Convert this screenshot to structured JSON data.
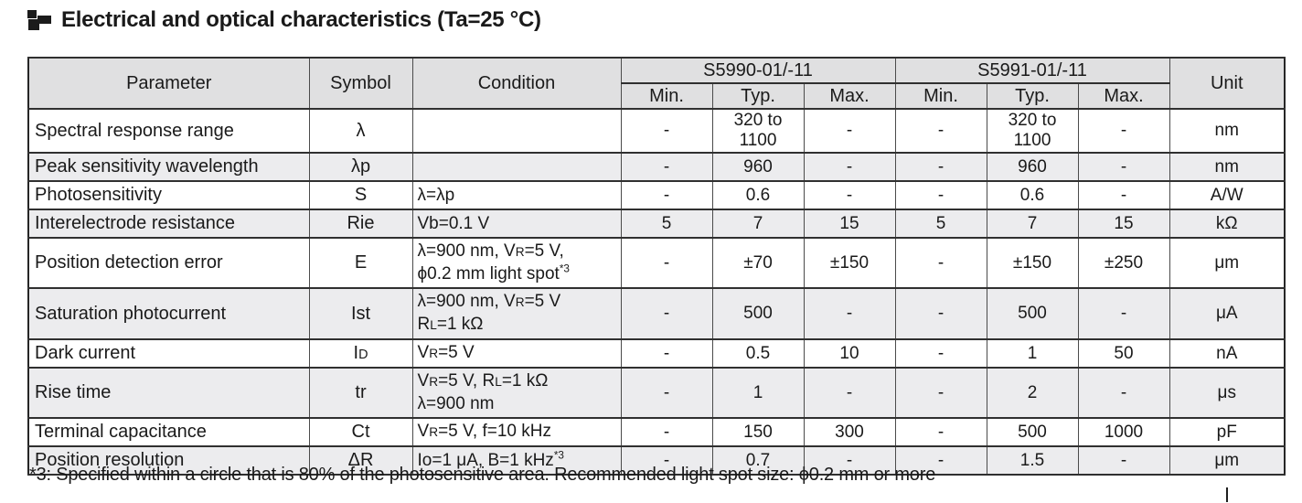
{
  "title": "Electrical and optical characteristics (Ta=25 °C)",
  "icons": {
    "section_bullet": "checker-squares-bullet"
  },
  "colors": {
    "text": "#1a1a1a",
    "header_bg": "#e0e0e1",
    "row_alt_bg": "#ececee",
    "border_dark": "#2a2a2a",
    "border_mid": "#4b4b4b"
  },
  "table": {
    "headers": {
      "parameter": "Parameter",
      "symbol": "Symbol",
      "condition": "Condition",
      "group1": "S5990-01/-11",
      "group2": "S5991-01/-11",
      "min": "Min.",
      "typ": "Typ.",
      "max": "Max.",
      "unit": "Unit"
    },
    "rows": [
      {
        "parameter": "Spectral response range",
        "symbol": "λ",
        "condition": "",
        "s5990": [
          "-",
          "320 to 1100",
          "-"
        ],
        "s5991": [
          "-",
          "320 to 1100",
          "-"
        ],
        "unit": "nm"
      },
      {
        "parameter": "Peak sensitivity wavelength",
        "symbol": "λp",
        "condition": "",
        "s5990": [
          "-",
          "960",
          "-"
        ],
        "s5991": [
          "-",
          "960",
          "-"
        ],
        "unit": "nm"
      },
      {
        "parameter": "Photosensitivity",
        "symbol": "S",
        "condition": "λ=λp",
        "s5990": [
          "-",
          "0.6",
          "-"
        ],
        "s5991": [
          "-",
          "0.6",
          "-"
        ],
        "unit": "A/W"
      },
      {
        "parameter": "Interelectrode resistance",
        "symbol": "Rie",
        "condition": "Vb=0.1 V",
        "s5990": [
          "5",
          "7",
          "15"
        ],
        "s5991": [
          "5",
          "7",
          "15"
        ],
        "unit": "kΩ"
      },
      {
        "parameter": "Position detection error",
        "symbol": "E",
        "condition": "λ=900 nm, V_{R}=5 V,\nϕ0.2 mm light spot^{*3}",
        "s5990": [
          "-",
          "±70",
          "±150"
        ],
        "s5991": [
          "-",
          "±150",
          "±250"
        ],
        "unit": "μm"
      },
      {
        "parameter": "Saturation photocurrent",
        "symbol": "Ist",
        "condition": "λ=900 nm, V_{R}=5 V\nR_{L}=1 kΩ",
        "s5990": [
          "-",
          "500",
          "-"
        ],
        "s5991": [
          "-",
          "500",
          "-"
        ],
        "unit": "μA"
      },
      {
        "parameter": "Dark current",
        "symbol": "I_{D}",
        "condition": "V_{R}=5 V",
        "s5990": [
          "-",
          "0.5",
          "10"
        ],
        "s5991": [
          "-",
          "1",
          "50"
        ],
        "unit": "nA"
      },
      {
        "parameter": "Rise time",
        "symbol": "tr",
        "condition": "V_{R}=5 V, R_{L}=1 kΩ\nλ=900 nm",
        "s5990": [
          "-",
          "1",
          "-"
        ],
        "s5991": [
          "-",
          "2",
          "-"
        ],
        "unit": "μs"
      },
      {
        "parameter": "Terminal capacitance",
        "symbol": "Ct",
        "condition": "V_{R}=5 V, f=10 kHz",
        "s5990": [
          "-",
          "150",
          "300"
        ],
        "s5991": [
          "-",
          "500",
          "1000"
        ],
        "unit": "pF"
      },
      {
        "parameter": "Position resolution",
        "symbol": "ΔR",
        "condition": "Io=1 μA, B=1 kHz^{*3}",
        "s5990": [
          "-",
          "0.7",
          "-"
        ],
        "s5991": [
          "-",
          "1.5",
          "-"
        ],
        "unit": "μm"
      }
    ]
  },
  "footnote": "*3: Specified within a circle that is 80% of the photosensitive area. Recommended light spot size: ϕ0.2 mm or more"
}
